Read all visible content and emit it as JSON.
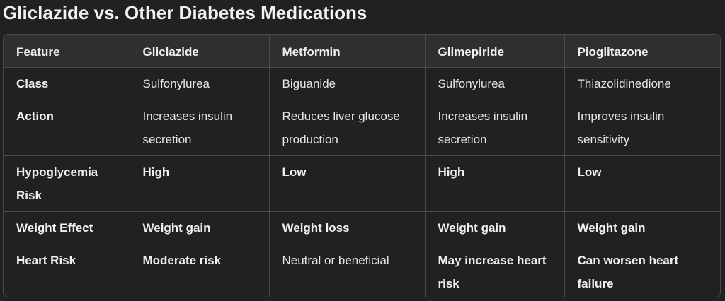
{
  "title": "Gliclazide vs. Other Diabetes Medications",
  "table": {
    "headers": [
      "Feature",
      "Gliclazide",
      "Metformin",
      "Glimepiride",
      "Pioglitazone"
    ],
    "rows": [
      {
        "feature": "Class",
        "cells": [
          "Sulfonylurea",
          "Biguanide",
          "Sulfonylurea",
          "Thiazolidinedione"
        ]
      },
      {
        "feature": "Action",
        "cells": [
          "Increases insulin secretion",
          "Reduces liver glucose production",
          "Increases insulin secretion",
          "Improves insulin sensitivity"
        ]
      },
      {
        "feature": "Hypoglycemia Risk",
        "cells": [
          "High",
          "Low",
          "High",
          "Low"
        ]
      },
      {
        "feature": "Weight Effect",
        "cells": [
          "Weight gain",
          "Weight loss",
          "Weight gain",
          "Weight gain"
        ]
      },
      {
        "feature": "Heart Risk",
        "cells": [
          "Moderate risk",
          "Neutral or beneficial",
          "May increase heart risk",
          "Can worsen heart failure"
        ]
      }
    ]
  }
}
